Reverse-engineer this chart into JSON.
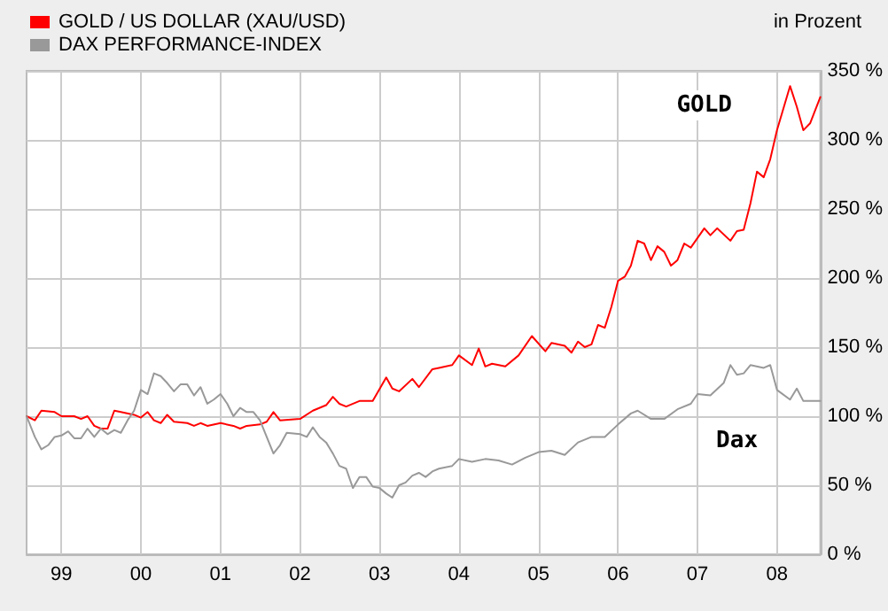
{
  "chart_data": {
    "type": "line",
    "ylabel": "in Prozent",
    "legend": "top left",
    "grid": true,
    "marker": "none",
    "line_style": "solid",
    "xlim": [
      "1998-07-25",
      "2008-07-18"
    ],
    "xticks": [
      {
        "value": "1999-01-01",
        "label": "99"
      },
      {
        "value": "2000-01-01",
        "label": "00"
      },
      {
        "value": "2001-01-01",
        "label": "01"
      },
      {
        "value": "2002-01-01",
        "label": "02"
      },
      {
        "value": "2003-01-01",
        "label": "03"
      },
      {
        "value": "2004-01-01",
        "label": "04"
      },
      {
        "value": "2005-01-01",
        "label": "05"
      },
      {
        "value": "2006-01-01",
        "label": "06"
      },
      {
        "value": "2007-01-01",
        "label": "07"
      },
      {
        "value": "2008-01-01",
        "label": "08"
      }
    ],
    "ylim": [
      0,
      350
    ],
    "yticks": [
      {
        "value": 0,
        "label": "0 %"
      },
      {
        "value": 50,
        "label": "50 %"
      },
      {
        "value": 100,
        "label": "100 %"
      },
      {
        "value": 150,
        "label": "150 %"
      },
      {
        "value": 200,
        "label": "200 %"
      },
      {
        "value": 250,
        "label": "250 %"
      },
      {
        "value": 300,
        "label": "300 %"
      },
      {
        "value": 350,
        "label": "350 %"
      }
    ],
    "annotations": [
      {
        "text": "GOLD",
        "x": "2007-02",
        "y": 325
      },
      {
        "text": "Dax",
        "x": "2007-07",
        "y": 82
      }
    ],
    "series": [
      {
        "name": "GOLD / US DOLLAR (XAU/USD)",
        "color": "#ff0000",
        "x": [
          "1998-07-25",
          "1998-09",
          "1998-10",
          "1998-12",
          "1999-01",
          "1999-03",
          "1999-04",
          "1999-05",
          "1999-06",
          "1999-07",
          "1999-08",
          "1999-09",
          "1999-10",
          "1999-12",
          "2000-01",
          "2000-02",
          "2000-03",
          "2000-04",
          "2000-05",
          "2000-06",
          "2000-08",
          "2000-09",
          "2000-10",
          "2000-11",
          "2001-01",
          "2001-03",
          "2001-04",
          "2001-05",
          "2001-07",
          "2001-08",
          "2001-09",
          "2001-10",
          "2002-01",
          "2002-03",
          "2002-05",
          "2002-06",
          "2002-07",
          "2002-08",
          "2002-10",
          "2002-12",
          "2003-02",
          "2003-03",
          "2003-04",
          "2003-06",
          "2003-07",
          "2003-09",
          "2003-10",
          "2003-12",
          "2004-01",
          "2004-03",
          "2004-04",
          "2004-05",
          "2004-06",
          "2004-08",
          "2004-10",
          "2004-12",
          "2005-02",
          "2005-03",
          "2005-05",
          "2005-06",
          "2005-07",
          "2005-08",
          "2005-09",
          "2005-10",
          "2005-11",
          "2005-12",
          "2006-01",
          "2006-02",
          "2006-03",
          "2006-04",
          "2006-05",
          "2006-06",
          "2006-07",
          "2006-08",
          "2006-09",
          "2006-10",
          "2006-11",
          "2006-12",
          "2007-02",
          "2007-03",
          "2007-04",
          "2007-06",
          "2007-07",
          "2007-08",
          "2007-09",
          "2007-10",
          "2007-11",
          "2007-12",
          "2008-01",
          "2008-03",
          "2008-04",
          "2008-05",
          "2008-06",
          "2008-07-18"
        ],
        "values": [
          100,
          97,
          104,
          103,
          100,
          100,
          98,
          100,
          93,
          91,
          91,
          104,
          103,
          101,
          99,
          103,
          97,
          95,
          101,
          96,
          95,
          93,
          95,
          93,
          95,
          93,
          91,
          93,
          94,
          96,
          103,
          97,
          98,
          104,
          108,
          114,
          109,
          107,
          111,
          111,
          128,
          120,
          118,
          127,
          121,
          134,
          135,
          137,
          144,
          137,
          149,
          136,
          138,
          136,
          144,
          158,
          147,
          153,
          151,
          146,
          154,
          150,
          152,
          166,
          164,
          179,
          198,
          201,
          209,
          227,
          225,
          213,
          223,
          219,
          209,
          213,
          225,
          222,
          236,
          231,
          236,
          227,
          234,
          235,
          254,
          277,
          273,
          286,
          307,
          339,
          324,
          307,
          312,
          331
        ]
      },
      {
        "name": "DAX PERFORMANCE-INDEX",
        "color": "#999999",
        "x": [
          "1998-07-25",
          "1998-09",
          "1998-10",
          "1998-11",
          "1998-12",
          "1999-01",
          "1999-02",
          "1999-03",
          "1999-04",
          "1999-05",
          "1999-06",
          "1999-07",
          "1999-08",
          "1999-09",
          "1999-10",
          "1999-11",
          "1999-12",
          "2000-01",
          "2000-02",
          "2000-03",
          "2000-04",
          "2000-05",
          "2000-06",
          "2000-07",
          "2000-08",
          "2000-09",
          "2000-10",
          "2000-11",
          "2000-12",
          "2001-01",
          "2001-02",
          "2001-03",
          "2001-04",
          "2001-05",
          "2001-06",
          "2001-07",
          "2001-08",
          "2001-09",
          "2001-10",
          "2001-11",
          "2002-01",
          "2002-02",
          "2002-03",
          "2002-04",
          "2002-05",
          "2002-06",
          "2002-07",
          "2002-08",
          "2002-09",
          "2002-10",
          "2002-11",
          "2002-12",
          "2003-01",
          "2003-02",
          "2003-03",
          "2003-04",
          "2003-05",
          "2003-06",
          "2003-07",
          "2003-08",
          "2003-09",
          "2003-10",
          "2003-12",
          "2004-01",
          "2004-03",
          "2004-05",
          "2004-07",
          "2004-09",
          "2004-11",
          "2005-01",
          "2005-03",
          "2005-05",
          "2005-07",
          "2005-09",
          "2005-11",
          "2006-01",
          "2006-03",
          "2006-04",
          "2006-06",
          "2006-08",
          "2006-10",
          "2006-12",
          "2007-01",
          "2007-03",
          "2007-05",
          "2007-06",
          "2007-07",
          "2007-08",
          "2007-09",
          "2007-11",
          "2007-12",
          "2008-01",
          "2008-03",
          "2008-04",
          "2008-05",
          "2008-07-18"
        ],
        "values": [
          100,
          85,
          76,
          79,
          85,
          86,
          89,
          84,
          84,
          91,
          85,
          91,
          87,
          90,
          88,
          97,
          104,
          119,
          116,
          131,
          129,
          124,
          118,
          123,
          123,
          115,
          121,
          109,
          112,
          116,
          109,
          100,
          106,
          103,
          103,
          97,
          85,
          73,
          79,
          88,
          87,
          85,
          92,
          85,
          81,
          73,
          64,
          62,
          48,
          56,
          56,
          49,
          48,
          44,
          41,
          50,
          52,
          57,
          59,
          56,
          60,
          62,
          64,
          69,
          67,
          69,
          68,
          65,
          70,
          74,
          75,
          72,
          81,
          85,
          85,
          94,
          102,
          104,
          98,
          98,
          105,
          109,
          116,
          115,
          124,
          137,
          130,
          131,
          137,
          135,
          137,
          119,
          112,
          120,
          111,
          111
        ]
      }
    ]
  }
}
